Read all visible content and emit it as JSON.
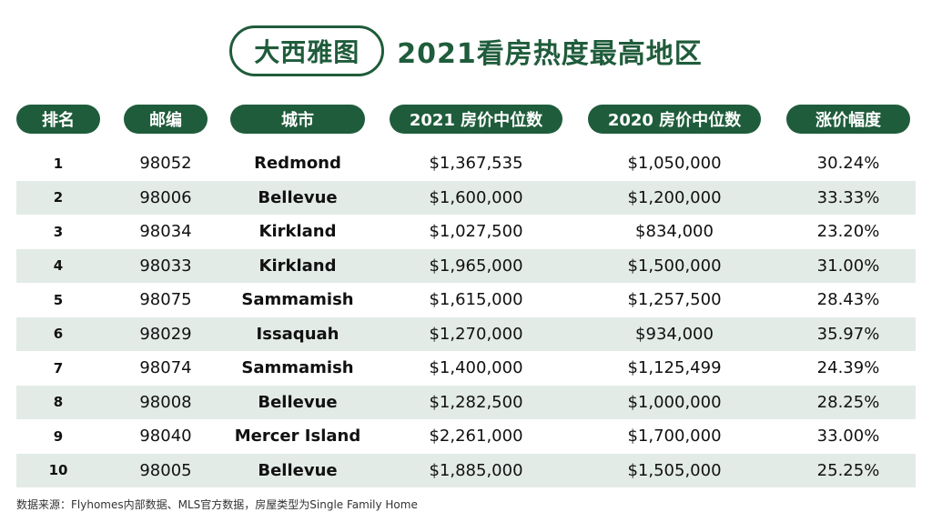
{
  "title": {
    "brand": "大西雅图",
    "text": "2021看房热度最高地区"
  },
  "headers": [
    "排名",
    "邮编",
    "城市",
    "2021 房价中位数",
    "2020 房价中位数",
    "涨价幅度"
  ],
  "rows": [
    {
      "rank": "1",
      "zip": "98052",
      "city": "Redmond",
      "p2021": "$1,367,535",
      "p2020": "$1,050,000",
      "change": "30.24%"
    },
    {
      "rank": "2",
      "zip": "98006",
      "city": "Bellevue",
      "p2021": "$1,600,000",
      "p2020": "$1,200,000",
      "change": "33.33%"
    },
    {
      "rank": "3",
      "zip": "98034",
      "city": "Kirkland",
      "p2021": "$1,027,500",
      "p2020": "$834,000",
      "change": "23.20%"
    },
    {
      "rank": "4",
      "zip": "98033",
      "city": "Kirkland",
      "p2021": "$1,965,000",
      "p2020": "$1,500,000",
      "change": "31.00%"
    },
    {
      "rank": "5",
      "zip": "98075",
      "city": "Sammamish",
      "p2021": "$1,615,000",
      "p2020": "$1,257,500",
      "change": "28.43%"
    },
    {
      "rank": "6",
      "zip": "98029",
      "city": "Issaquah",
      "p2021": "$1,270,000",
      "p2020": "$934,000",
      "change": "35.97%"
    },
    {
      "rank": "7",
      "zip": "98074",
      "city": "Sammamish",
      "p2021": "$1,400,000",
      "p2020": "$1,125,499",
      "change": "24.39%"
    },
    {
      "rank": "8",
      "zip": "98008",
      "city": "Bellevue",
      "p2021": "$1,282,500",
      "p2020": "$1,000,000",
      "change": "28.25%"
    },
    {
      "rank": "9",
      "zip": "98040",
      "city": "Mercer Island",
      "p2021": "$2,261,000",
      "p2020": "$1,700,000",
      "change": "33.00%"
    },
    {
      "rank": "10",
      "zip": "98005",
      "city": "Bellevue",
      "p2021": "$1,885,000",
      "p2020": "$1,505,000",
      "change": "25.25%"
    }
  ],
  "footnote": "数据来源：Flyhomes内部数据、MLS官方数据，房屋类型为Single Family Home",
  "colors": {
    "accent": "#1f5c3b",
    "row_alt": "#e3ebe7"
  }
}
